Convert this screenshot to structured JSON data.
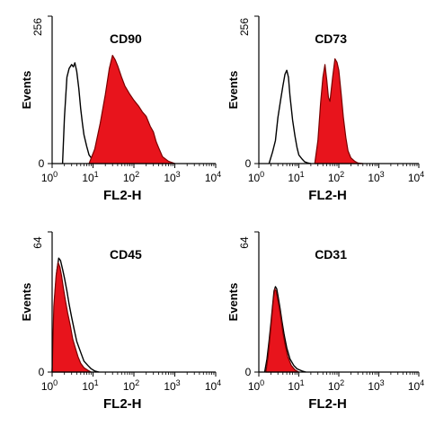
{
  "colors": {
    "filled": "#e8141c",
    "filled_edge": "#7a0000",
    "outline": "#000000"
  },
  "chart_data": [
    {
      "type": "area",
      "title": "CD90",
      "xlabel": "FL2-H",
      "ylabel": "Events",
      "x_scale": "log",
      "xlim": [
        1,
        10000
      ],
      "ylim": [
        0,
        256
      ],
      "xticks": [
        1,
        10,
        100,
        1000,
        10000
      ],
      "ytick_labels": [
        "0",
        "256"
      ],
      "series": [
        {
          "style": "outline",
          "x": [
            1.8,
            2.0,
            2.3,
            2.6,
            3.0,
            3.3,
            3.6,
            4.0,
            4.5,
            5.0,
            5.5,
            6.0,
            7.0,
            8.0,
            10.0,
            12.0,
            16.0
          ],
          "y": [
            0,
            80,
            150,
            165,
            172,
            168,
            175,
            160,
            130,
            95,
            70,
            50,
            30,
            15,
            6,
            2,
            0
          ]
        },
        {
          "style": "filled",
          "x": [
            8.0,
            11.0,
            15.0,
            20.0,
            25.0,
            30.0,
            35.0,
            40.0,
            50.0,
            60.0,
            80.0,
            100.0,
            130.0,
            160.0,
            200.0,
            250.0,
            300.0,
            350.0,
            400.0,
            500.0,
            700.0,
            1000.0
          ],
          "y": [
            0,
            25,
            70,
            120,
            165,
            188,
            180,
            170,
            150,
            135,
            120,
            110,
            100,
            90,
            82,
            65,
            55,
            38,
            28,
            12,
            4,
            0
          ]
        }
      ]
    },
    {
      "type": "area",
      "title": "CD73",
      "xlabel": "FL2-H",
      "ylabel": "Events",
      "x_scale": "log",
      "xlim": [
        1,
        10000
      ],
      "ylim": [
        0,
        256
      ],
      "xticks": [
        1,
        10,
        100,
        1000,
        10000
      ],
      "ytick_labels": [
        "0",
        "256"
      ],
      "series": [
        {
          "style": "outline",
          "x": [
            1.8,
            2.2,
            2.6,
            3.0,
            3.5,
            4.0,
            4.5,
            5.0,
            5.5,
            6.0,
            7.0,
            8.0,
            9.0,
            10.0,
            12.0,
            14.0,
            17.0,
            20.0
          ],
          "y": [
            0,
            20,
            40,
            80,
            110,
            135,
            155,
            162,
            150,
            118,
            75,
            48,
            28,
            15,
            8,
            3,
            1,
            0
          ]
        },
        {
          "style": "filled",
          "x": [
            25.0,
            30.0,
            35.0,
            40.0,
            45.0,
            50.0,
            55.0,
            60.0,
            70.0,
            80.0,
            90.0,
            100.0,
            115.0,
            130.0,
            150.0,
            170.0,
            200.0,
            250.0,
            300.0,
            400.0
          ],
          "y": [
            0,
            40,
            105,
            150,
            172,
            145,
            115,
            108,
            150,
            182,
            176,
            162,
            120,
            80,
            45,
            22,
            10,
            4,
            1,
            0
          ]
        }
      ]
    },
    {
      "type": "area",
      "title": "CD45",
      "xlabel": "FL2-H",
      "ylabel": "Events",
      "x_scale": "log",
      "xlim": [
        1,
        10000
      ],
      "ylim": [
        0,
        64
      ],
      "xticks": [
        1,
        10,
        100,
        1000,
        10000
      ],
      "ytick_labels": [
        "0",
        "64"
      ],
      "series": [
        {
          "style": "outline",
          "x": [
            1.0,
            1.15,
            1.3,
            1.45,
            1.6,
            1.8,
            2.0,
            2.3,
            2.6,
            3.0,
            3.5,
            4.0,
            5.0,
            6.0,
            7.5,
            9.0,
            11.0,
            14.0
          ],
          "y": [
            0,
            33,
            46,
            52,
            51,
            47,
            43,
            37,
            31,
            25,
            19,
            14,
            9,
            5,
            3,
            1.5,
            0.5,
            0
          ]
        },
        {
          "style": "filled",
          "x": [
            1.0,
            1.1,
            1.25,
            1.4,
            1.55,
            1.7,
            1.9,
            2.1,
            2.4,
            2.8,
            3.2,
            3.7,
            4.3,
            5.0,
            6.0,
            7.5,
            9.0
          ],
          "y": [
            0,
            30,
            44,
            50,
            48,
            44,
            38,
            33,
            27,
            21,
            15,
            11,
            7,
            4,
            2,
            0.8,
            0
          ]
        }
      ]
    },
    {
      "type": "area",
      "title": "CD31",
      "xlabel": "FL2-H",
      "ylabel": "Events",
      "x_scale": "log",
      "xlim": [
        1,
        10000
      ],
      "ylim": [
        0,
        64
      ],
      "xticks": [
        1,
        10,
        100,
        1000,
        10000
      ],
      "ytick_labels": [
        "0",
        "64"
      ],
      "series": [
        {
          "style": "outline",
          "x": [
            1.4,
            1.6,
            1.8,
            2.0,
            2.2,
            2.4,
            2.6,
            2.8,
            3.0,
            3.4,
            3.8,
            4.3,
            5.0,
            6.0,
            7.5,
            9.0,
            12.0,
            15.0
          ],
          "y": [
            0,
            6,
            14,
            22,
            30,
            37,
            39,
            38,
            35,
            29,
            23,
            17,
            11,
            6,
            3,
            1.5,
            0.5,
            0
          ]
        },
        {
          "style": "filled",
          "x": [
            1.5,
            1.7,
            1.9,
            2.1,
            2.3,
            2.5,
            2.7,
            2.9,
            3.2,
            3.6,
            4.0,
            4.6,
            5.3,
            6.5,
            8.0,
            10.0
          ],
          "y": [
            0,
            7,
            16,
            25,
            33,
            38,
            37,
            34,
            30,
            24,
            18,
            12,
            7,
            3,
            1,
            0
          ]
        }
      ]
    }
  ]
}
